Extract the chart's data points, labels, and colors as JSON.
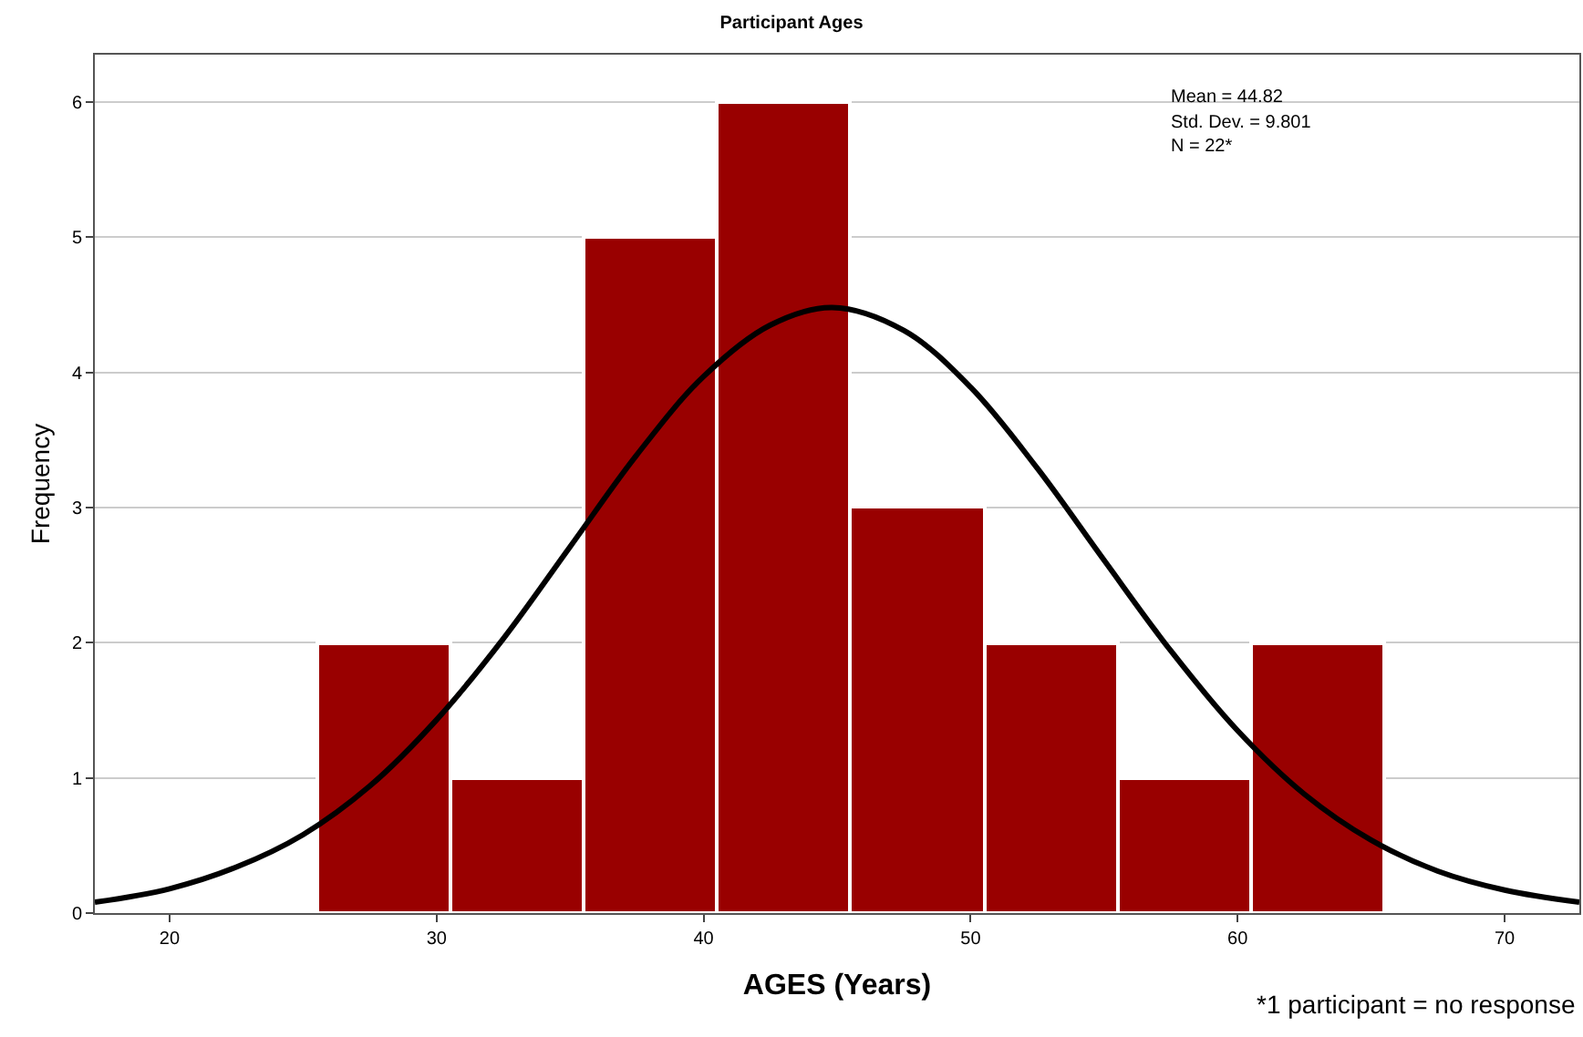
{
  "chart_data": {
    "type": "histogram",
    "title": "Participant Ages",
    "xlabel": "AGES (Years)",
    "ylabel": "Frequency",
    "bins": [
      25.5,
      30.5,
      35.5,
      40.5,
      45.5,
      50.5,
      55.5,
      60.5,
      65.5
    ],
    "values": [
      2,
      1,
      5,
      6,
      3,
      2,
      1,
      2
    ],
    "color": "#990000",
    "series": [
      {
        "type": "line",
        "color": "#000000",
        "x": [
          17.2,
          20,
          22.5,
          25,
          27.5,
          30,
          32.5,
          35,
          37.5,
          40,
          42.5,
          44.82,
          47.5,
          50,
          52.5,
          55,
          57.5,
          60,
          62.5,
          65,
          67.5,
          70,
          72.8
        ],
        "values": [
          0.08,
          0.18,
          0.34,
          0.58,
          0.94,
          1.43,
          2.03,
          2.71,
          3.39,
          3.97,
          4.35,
          4.48,
          4.31,
          3.89,
          3.29,
          2.61,
          1.94,
          1.35,
          0.88,
          0.54,
          0.31,
          0.17,
          0.08
        ]
      }
    ],
    "xlim": [
      17.2,
      72.8
    ],
    "xticks": [
      20,
      30,
      40,
      50,
      60,
      70
    ],
    "ylim": [
      0,
      6.35
    ],
    "yticks": [
      0,
      1,
      2,
      3,
      4,
      5,
      6
    ],
    "grid": "y",
    "annotations": [
      "Mean = 44.82",
      "Std. Dev. = 9.801",
      "N = 22*",
      "*1 participant = no response"
    ]
  }
}
